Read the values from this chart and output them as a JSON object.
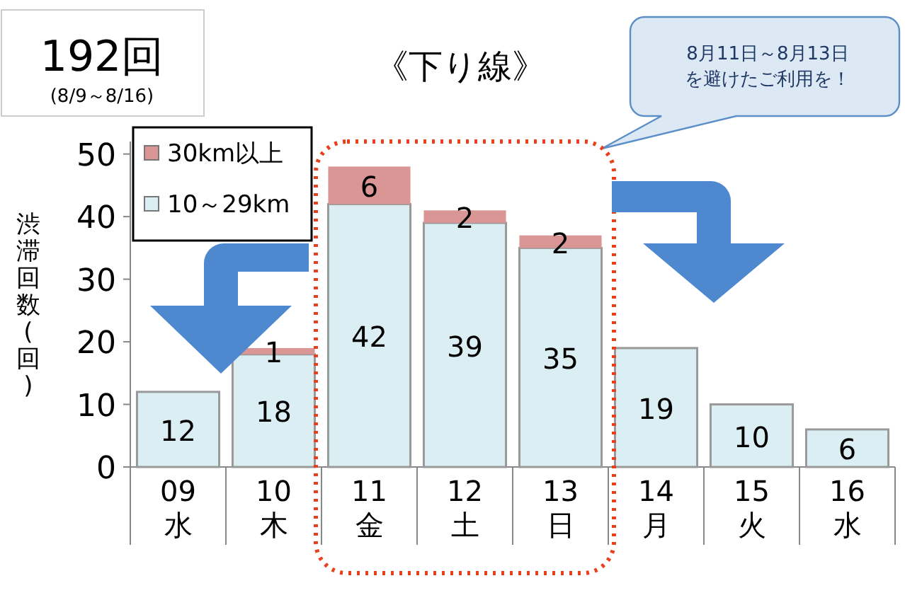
{
  "chart_data": {
    "type": "bar",
    "title": "《下り線》",
    "ylabel": "渋滞回数(回)",
    "annotations": [
      "192回",
      "(8/9～8/16)",
      "8月11日～8月13日",
      "を避けたご利用を！"
    ],
    "categories": [
      "09\n水",
      "10\n木",
      "11\n金",
      "12\n土",
      "13\n日",
      "14\n月",
      "15\n火",
      "16\n水"
    ],
    "stacked": true,
    "series": [
      {
        "name": "10～29km",
        "color": "#dbeef3",
        "values": [
          12,
          18,
          42,
          39,
          35,
          19,
          10,
          6
        ]
      },
      {
        "name": "30km以上",
        "color": "#d99694",
        "values": [
          null,
          1,
          6,
          2,
          2,
          null,
          null,
          null
        ]
      }
    ],
    "ylim": [
      0,
      52
    ],
    "yticks": [
      0,
      10,
      20,
      30,
      40,
      50
    ],
    "data_labels": true,
    "legend": "top left",
    "grid": false
  }
}
